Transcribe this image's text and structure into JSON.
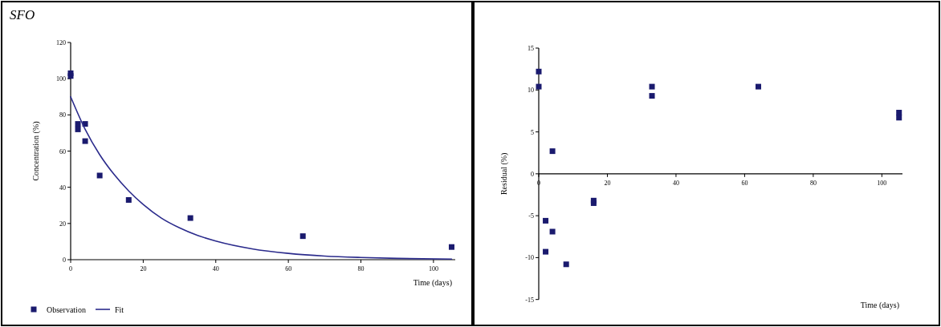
{
  "chart_data": [
    {
      "type": "scatter",
      "title": "SFO",
      "xlabel": "Time (days)",
      "ylabel": "Concentration (%)",
      "xlim": [
        0,
        106
      ],
      "ylim": [
        0,
        120
      ],
      "xticks": [
        0,
        20,
        40,
        60,
        80,
        100
      ],
      "yticks": [
        0,
        20,
        40,
        60,
        80,
        100,
        120
      ],
      "legend": "bottom left",
      "series": [
        {
          "name": "Observation",
          "marker": "square",
          "color": "#1a1a6e",
          "x": [
            0,
            0,
            2,
            2,
            4,
            4,
            8,
            16,
            33,
            64,
            105
          ],
          "values": [
            101.5,
            103,
            75,
            72,
            75,
            65.5,
            46.5,
            33,
            23,
            13,
            7
          ]
        },
        {
          "name": "Fit",
          "type": "line",
          "color": "#2b2b8c",
          "x": [
            0,
            4,
            8,
            12,
            16,
            20,
            25,
            30,
            35,
            40,
            50,
            60,
            70,
            80,
            90,
            105
          ],
          "values": [
            90,
            72,
            58,
            47,
            38,
            30.5,
            23,
            17.6,
            13.4,
            10.3,
            6,
            3.5,
            2,
            1.2,
            0.7,
            0.3
          ]
        }
      ]
    },
    {
      "type": "scatter",
      "xlabel": "Time (days)",
      "ylabel": "Residual (%)",
      "xlim": [
        0,
        106
      ],
      "ylim": [
        -15,
        15
      ],
      "xticks": [
        0,
        20,
        40,
        60,
        80,
        100
      ],
      "yticks": [
        -15,
        -10,
        -5,
        0,
        5,
        10,
        15
      ],
      "marker": "square",
      "series": [
        {
          "color": "#1a1a6e",
          "x": [
            0,
            0,
            2,
            2,
            4,
            4,
            8,
            16,
            16,
            33,
            33,
            64,
            105,
            105
          ],
          "values": [
            12.2,
            10.4,
            -5.6,
            -9.3,
            2.7,
            -6.9,
            -10.8,
            -3.2,
            -3.5,
            10.4,
            9.3,
            10.4,
            7.3,
            6.7
          ]
        }
      ]
    }
  ]
}
